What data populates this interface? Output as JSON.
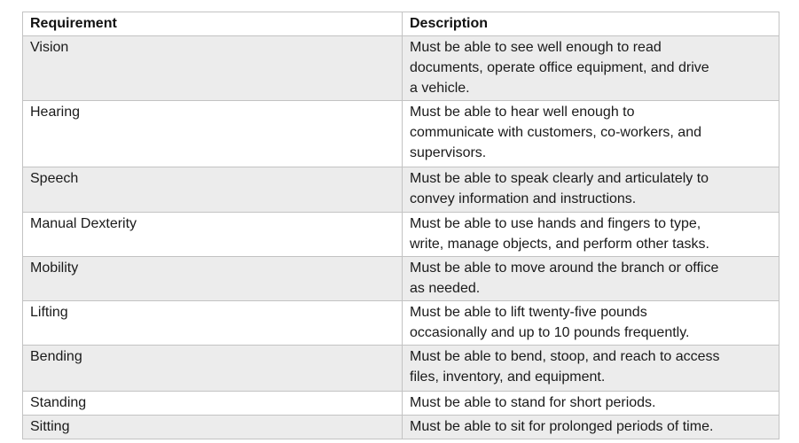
{
  "table": {
    "columns": [
      {
        "label": "Requirement"
      },
      {
        "label": "Description"
      }
    ],
    "rows": [
      {
        "requirement": "Vision",
        "description": "Must be able to see well enough to read\ndocuments, operate office equipment, and drive\na vehicle."
      },
      {
        "requirement": "Hearing",
        "description": "Must be able to hear well enough to\ncommunicate with customers, co-workers, and\nsupervisors."
      },
      {
        "requirement": "Speech",
        "description": "Must be able to speak clearly and articulately to\nconvey information and instructions."
      },
      {
        "requirement": "Manual Dexterity",
        "description": "Must be able to use hands and fingers to type,\nwrite, manage objects, and perform other tasks."
      },
      {
        "requirement": "Mobility",
        "description": "Must be able to move around the branch or office\nas needed."
      },
      {
        "requirement": "Lifting",
        "description": "Must be able to lift twenty-five pounds\noccasionally and up to 10 pounds frequently."
      },
      {
        "requirement": "Bending",
        "description": "Must be able to bend, stoop, and reach to access\nfiles, inventory, and equipment."
      },
      {
        "requirement": "Standing",
        "description": "Must be able to stand for short periods."
      },
      {
        "requirement": "Sitting",
        "description": "Must be able to sit for prolonged periods of time."
      }
    ]
  },
  "colors": {
    "row_shade": "#ececec",
    "border": "#c3c3c3",
    "text": "#1a1a1a",
    "background": "#ffffff"
  }
}
